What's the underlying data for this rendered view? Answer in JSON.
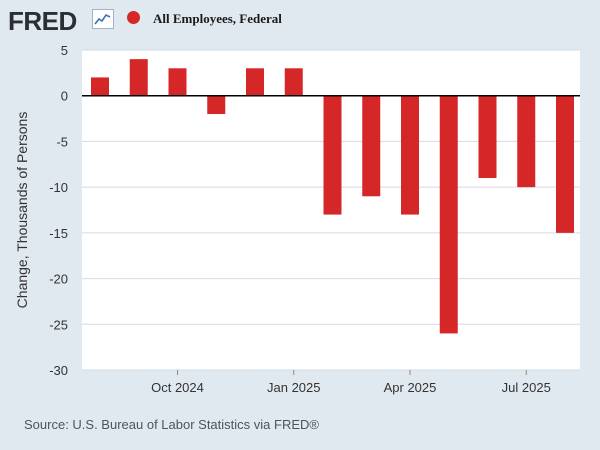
{
  "header": {
    "logo_text": "FRED",
    "logo_icon": "trend-line-icon",
    "legend_label": "All Employees, Federal",
    "series_color": "#d62728"
  },
  "source": "Source: U.S. Bureau of Labor Statistics via FRED®",
  "chart_data": {
    "type": "bar",
    "title": "",
    "ylabel": "Change, Thousands of Persons",
    "xlabel": "",
    "ylim": [
      -30,
      5
    ],
    "yticks": [
      5,
      0,
      -5,
      -10,
      -15,
      -20,
      -25,
      -30
    ],
    "xtick_labels": [
      {
        "label": "Oct 2024",
        "index": 2
      },
      {
        "label": "Jan 2025",
        "index": 5
      },
      {
        "label": "Apr 2025",
        "index": 8
      },
      {
        "label": "Jul 2025",
        "index": 11
      }
    ],
    "categories": [
      "2024-08",
      "2024-09",
      "2024-10",
      "2024-11",
      "2024-12",
      "2025-01",
      "2025-02",
      "2025-03",
      "2025-04",
      "2025-05",
      "2025-06",
      "2025-07",
      "2025-08"
    ],
    "series": [
      {
        "values": [
          2,
          4,
          3,
          -2,
          3,
          3,
          -13,
          -11,
          -13,
          -26,
          -9,
          -10,
          -15
        ]
      }
    ],
    "grid": true,
    "zero_line": true
  }
}
